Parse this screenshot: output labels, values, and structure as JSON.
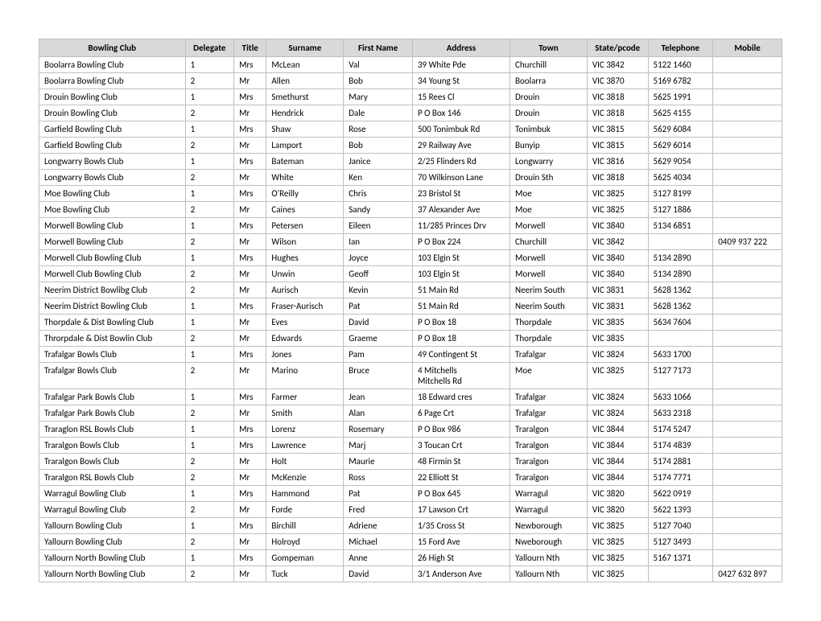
{
  "table": {
    "columns": [
      "Bowling Club",
      "Delegate",
      "Title",
      "Surname",
      "First Name",
      "Address",
      "Town",
      "State/pcode",
      "Telephone",
      "Mobile"
    ],
    "rows": [
      [
        "Boolarra Bowling Club",
        "1",
        "Mrs",
        "McLean",
        "Val",
        "39 White Pde",
        "Churchill",
        "VIC   3842",
        "5122 1460",
        ""
      ],
      [
        "Boolarra Bowling Club",
        "2",
        "Mr",
        "Allen",
        "Bob",
        "34 Young St",
        "Boolarra",
        "VIC   3870",
        "5169 6782",
        ""
      ],
      [
        "Drouin Bowling Club",
        "1",
        "Mrs",
        "Smethurst",
        "Mary",
        "15 Rees Cl",
        "Drouin",
        "VIC   3818",
        "5625 1991",
        ""
      ],
      [
        "Drouin Bowling Club",
        "2",
        "Mr",
        "Hendrick",
        "Dale",
        "P O Box 146",
        "Drouin",
        "VIC   3818",
        "5625 4155",
        ""
      ],
      [
        "Garfield Bowling Club",
        "1",
        "Mrs",
        "Shaw",
        "Rose",
        "500 Tonimbuk Rd",
        "Tonimbuk",
        "VIC   3815",
        "5629 6084",
        ""
      ],
      [
        "Garfield Bowling Club",
        "2",
        "Mr",
        "Lamport",
        "Bob",
        "29 Railway Ave",
        "Bunyip",
        "VIC   3815",
        "5629 6014",
        ""
      ],
      [
        "Longwarry Bowls Club",
        "1",
        "Mrs",
        "Bateman",
        "Janice",
        "2/25 Flinders Rd",
        "Longwarry",
        "VIC   3816",
        "5629 9054",
        ""
      ],
      [
        "Longwarry Bowls Club",
        "2",
        "Mr",
        "White",
        "Ken",
        "70 Wilkinson Lane",
        "Drouin Sth",
        "VIC   3818",
        "5625 4034",
        ""
      ],
      [
        "Moe Bowling Club",
        "1",
        "Mrs",
        "O'Reilly",
        "Chris",
        "23 Bristol St",
        "Moe",
        "VIC   3825",
        "5127 8199",
        ""
      ],
      [
        "Moe Bowling Club",
        "2",
        "Mr",
        "Caines",
        "Sandy",
        "37 Alexander Ave",
        "Moe",
        "VIC   3825",
        "5127 1886",
        ""
      ],
      [
        "Morwell Bowling Club",
        "1",
        "Mrs",
        "Petersen",
        "Eileen",
        "11/285 Princes Drv",
        "Morwell",
        "VIC   3840",
        "5134 6851",
        ""
      ],
      [
        "Morwell Bowling Club",
        "2",
        "Mr",
        "Wilson",
        "Ian",
        "P O Box 224",
        "Churchill",
        "VIC   3842",
        "",
        "0409 937 222"
      ],
      [
        "Morwell Club Bowling Club",
        "1",
        "Mrs",
        "Hughes",
        "Joyce",
        "103 Elgin St",
        "Morwell",
        "VIC   3840",
        "5134 2890",
        ""
      ],
      [
        "Morwell Club Bowling Club",
        "2",
        "Mr",
        "Unwin",
        "Geoff",
        "103 Elgin St",
        "Morwell",
        "VIC   3840",
        "5134 2890",
        ""
      ],
      [
        "Neerim District Bowlibg Club",
        "2",
        "Mr",
        "Aurisch",
        "Kevin",
        "51 Main Rd",
        "Neerim South",
        "VIC   3831",
        "5628 1362",
        ""
      ],
      [
        "Neerim District Bowling Club",
        "1",
        "Mrs",
        "Fraser-Aurisch",
        "Pat",
        "51 Main Rd",
        "Neerim South",
        "VIC   3831",
        "5628 1362",
        ""
      ],
      [
        "Thorpdale & Dist Bowling Club",
        "1",
        "Mr",
        "Eves",
        "David",
        "P O Box 18",
        "Thorpdale",
        "VIC   3835",
        "5634 7604",
        ""
      ],
      [
        "Throrpdale & Dist Bowlin Club",
        "2",
        "Mr",
        "Edwards",
        "Graeme",
        "P O Box 18",
        "Thorpdale",
        "VIC   3835",
        "",
        ""
      ],
      [
        "Trafalgar Bowls Club",
        "1",
        "Mrs",
        "Jones",
        "Pam",
        "49 Contingent St",
        "Trafalgar",
        "VIC   3824",
        "5633 1700",
        ""
      ],
      [
        "Trafalgar Bowls Club",
        "2",
        "Mr",
        "Marino",
        "Bruce",
        "4 Mitchells\nMitchells Rd",
        "Moe",
        "VIC   3825",
        "5127 7173",
        ""
      ],
      [
        "Trafalgar Park Bowls Club",
        "1",
        "Mrs",
        "Farmer",
        "Jean",
        "18 Edward cres",
        "Trafalgar",
        "VIC   3824",
        "5633 1066",
        ""
      ],
      [
        "Trafalgar Park Bowls Club",
        "2",
        "Mr",
        "Smith",
        "Alan",
        "6 Page Crt",
        "Trafalgar",
        "VIC   3824",
        "5633 2318",
        ""
      ],
      [
        "Traraglon RSL Bowls Club",
        "1",
        "Mrs",
        "Lorenz",
        "Rosemary",
        "P O Box 986",
        "Traralgon",
        "VIC   3844",
        "5174 5247",
        ""
      ],
      [
        "Traralgon Bowls Club",
        "1",
        "Mrs",
        "Lawrence",
        "Marj",
        "3 Toucan Crt",
        "Traralgon",
        "VIC   3844",
        "5174 4839",
        ""
      ],
      [
        "Traralgon Bowls Club",
        "2",
        "Mr",
        "Holt",
        "Maurie",
        "48 Firmin St",
        "Traralgon",
        "VIC   3844",
        "5174 2881",
        ""
      ],
      [
        "Traralgon RSL Bowls Club",
        "2",
        "Mr",
        "McKenzie",
        "Ross",
        "22 Elliott St",
        "Traralgon",
        "VIC   3844",
        "5174 7771",
        ""
      ],
      [
        "Warragul Bowling Club",
        "1",
        "Mrs",
        "Hammond",
        "Pat",
        "P O Box 645",
        "Warragul",
        "VIC   3820",
        "5622 0919",
        ""
      ],
      [
        "Warragul Bowling Club",
        "2",
        "Mr",
        "Forde",
        "Fred",
        "17 Lawson Crt",
        "Warragul",
        "VIC   3820",
        "5622 1393",
        ""
      ],
      [
        "Yallourn Bowling Club",
        "1",
        "Mrs",
        "Birchill",
        "Adriene",
        "1/35 Cross St",
        "Newborough",
        "VIC   3825",
        "5127 7040",
        ""
      ],
      [
        "Yallourn Bowling Club",
        "2",
        "Mr",
        "Holroyd",
        "Michael",
        "15 Ford Ave",
        "Nweborough",
        "VIC   3825",
        "5127 3493",
        ""
      ],
      [
        "Yallourn North Bowling Club",
        "1",
        "Mrs",
        "Gompeman",
        "Anne",
        "26 High St",
        "Yallourn Nth",
        "VIC   3825",
        "5167 1371",
        ""
      ],
      [
        "Yallourn North Bowling Club",
        "2",
        "Mr",
        "Tuck",
        "David",
        "3/1 Anderson Ave",
        "Yallourn Nth",
        "VIC   3825",
        "",
        "0427 632 897"
      ]
    ],
    "header_bg": "#d9d9d9",
    "border_color": "#bfbfbf",
    "font_family": "Calibri, Arial, sans-serif",
    "font_size_pt": 11
  }
}
